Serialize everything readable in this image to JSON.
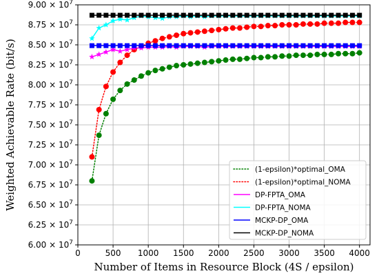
{
  "chart_data": {
    "type": "line",
    "xlabel": "Number of Items in Resource Block (4S / epsilon)",
    "ylabel": "Weighted Achievable Rate (bit/s)",
    "xlim": [
      0,
      4150
    ],
    "ylim": [
      6.0,
      9.0
    ],
    "y_scale_suffix": "x 10^7",
    "x_ticks": [
      0,
      500,
      1000,
      1500,
      2000,
      2500,
      3000,
      3500,
      4000
    ],
    "x_tick_labels": [
      "0",
      "500",
      "1000",
      "1500",
      "2000",
      "2500",
      "3000",
      "3500",
      "4000"
    ],
    "y_ticks": [
      6.0,
      6.25,
      6.5,
      6.75,
      7.0,
      7.25,
      7.5,
      7.75,
      8.0,
      8.25,
      8.5,
      8.75,
      9.0
    ],
    "y_tick_labels": [
      "6.00",
      "6.25",
      "6.50",
      "6.75",
      "7.00",
      "7.25",
      "7.50",
      "7.75",
      "8.00",
      "8.25",
      "8.50",
      "8.75",
      "9.00"
    ],
    "y_tick_multiplier_base": "× 10",
    "y_tick_multiplier_exp": "7",
    "grid": true,
    "legend_position": "lower-right",
    "series": [
      {
        "name": "(1-epsilon)*optimal_OMA",
        "color": "#008000",
        "line_style": "dotted",
        "marker": "circle",
        "x": [
          200,
          300,
          400,
          500,
          600,
          700,
          800,
          900,
          1000,
          1100,
          1200,
          1300,
          1400,
          1500,
          1600,
          1700,
          1800,
          1900,
          2000,
          2100,
          2200,
          2300,
          2400,
          2500,
          2600,
          2700,
          2800,
          2900,
          3000,
          3100,
          3200,
          3300,
          3400,
          3500,
          3600,
          3700,
          3800,
          3900,
          4000
        ],
        "values": [
          6.8,
          7.37,
          7.64,
          7.82,
          7.93,
          8.01,
          8.06,
          8.11,
          8.15,
          8.18,
          8.2,
          8.22,
          8.24,
          8.25,
          8.26,
          8.27,
          8.28,
          8.29,
          8.3,
          8.31,
          8.32,
          8.32,
          8.33,
          8.34,
          8.34,
          8.35,
          8.35,
          8.36,
          8.36,
          8.37,
          8.37,
          8.37,
          8.38,
          8.38,
          8.38,
          8.39,
          8.39,
          8.39,
          8.4
        ]
      },
      {
        "name": "(1-epsilon)*optimal_NOMA",
        "color": "#ff0000",
        "line_style": "dotted",
        "marker": "circle",
        "x": [
          200,
          300,
          400,
          500,
          600,
          700,
          800,
          900,
          1000,
          1100,
          1200,
          1300,
          1400,
          1500,
          1600,
          1700,
          1800,
          1900,
          2000,
          2100,
          2200,
          2300,
          2400,
          2500,
          2600,
          2700,
          2800,
          2900,
          3000,
          3100,
          3200,
          3300,
          3400,
          3500,
          3600,
          3700,
          3800,
          3900,
          4000
        ],
        "values": [
          7.1,
          7.69,
          7.98,
          8.16,
          8.28,
          8.37,
          8.44,
          8.48,
          8.52,
          8.55,
          8.58,
          8.6,
          8.62,
          8.64,
          8.65,
          8.66,
          8.67,
          8.68,
          8.69,
          8.7,
          8.71,
          8.71,
          8.72,
          8.73,
          8.73,
          8.74,
          8.74,
          8.75,
          8.75,
          8.75,
          8.76,
          8.76,
          8.76,
          8.77,
          8.77,
          8.77,
          8.78,
          8.78,
          8.78
        ]
      },
      {
        "name": "DP-FPTA_OMA",
        "color": "#ff00ff",
        "line_style": "solid",
        "marker": "star",
        "x": [
          200,
          300,
          400,
          500,
          600,
          700,
          800,
          900,
          1000,
          1100,
          1200,
          1300,
          1400,
          1500,
          1600,
          1700,
          1800,
          1900,
          2000,
          2100,
          2200,
          2300,
          2400,
          2500,
          2600,
          2700,
          2800,
          2900,
          3000,
          3100,
          3200,
          3300,
          3400,
          3500,
          3600,
          3700,
          3800,
          3900,
          4000
        ],
        "values": [
          8.35,
          8.38,
          8.41,
          8.44,
          8.42,
          8.44,
          8.46,
          8.46,
          8.47,
          8.47,
          8.47,
          8.48,
          8.47,
          8.48,
          8.48,
          8.48,
          8.47,
          8.48,
          8.48,
          8.48,
          8.48,
          8.48,
          8.48,
          8.48,
          8.48,
          8.48,
          8.48,
          8.48,
          8.48,
          8.48,
          8.48,
          8.48,
          8.48,
          8.48,
          8.48,
          8.48,
          8.48,
          8.48,
          8.48
        ]
      },
      {
        "name": "DP-FPTA_NOMA",
        "color": "#00ffff",
        "line_style": "solid",
        "marker": "star",
        "x": [
          200,
          300,
          400,
          500,
          600,
          700,
          800,
          900,
          1000,
          1100,
          1200,
          1300,
          1400,
          1500,
          1600,
          1700,
          1800,
          1900,
          2000,
          2100,
          2200,
          2300,
          2400,
          2500,
          2600,
          2700,
          2800,
          2900,
          3000,
          3100,
          3200,
          3300,
          3400,
          3500,
          3600,
          3700,
          3800,
          3900,
          4000
        ],
        "values": [
          8.58,
          8.71,
          8.75,
          8.8,
          8.82,
          8.81,
          8.84,
          8.86,
          8.85,
          8.84,
          8.83,
          8.85,
          8.85,
          8.86,
          8.85,
          8.86,
          8.85,
          8.86,
          8.86,
          8.86,
          8.86,
          8.86,
          8.86,
          8.86,
          8.86,
          8.86,
          8.86,
          8.86,
          8.86,
          8.86,
          8.86,
          8.86,
          8.86,
          8.86,
          8.86,
          8.86,
          8.86,
          8.86,
          8.86
        ]
      },
      {
        "name": "MCKP-DP_OMA",
        "color": "#0000ff",
        "line_style": "solid",
        "marker": "square",
        "x": [
          200,
          300,
          400,
          500,
          600,
          700,
          800,
          900,
          1000,
          1100,
          1200,
          1300,
          1400,
          1500,
          1600,
          1700,
          1800,
          1900,
          2000,
          2100,
          2200,
          2300,
          2400,
          2500,
          2600,
          2700,
          2800,
          2900,
          3000,
          3100,
          3200,
          3300,
          3400,
          3500,
          3600,
          3700,
          3800,
          3900,
          4000
        ],
        "values": [
          8.49,
          8.49,
          8.49,
          8.49,
          8.49,
          8.49,
          8.49,
          8.49,
          8.49,
          8.49,
          8.49,
          8.49,
          8.49,
          8.49,
          8.49,
          8.49,
          8.49,
          8.49,
          8.49,
          8.49,
          8.49,
          8.49,
          8.49,
          8.49,
          8.49,
          8.49,
          8.49,
          8.49,
          8.49,
          8.49,
          8.49,
          8.49,
          8.49,
          8.49,
          8.49,
          8.49,
          8.49,
          8.49,
          8.49
        ]
      },
      {
        "name": "MCKP-DP_NOMA",
        "color": "#000000",
        "line_style": "solid",
        "marker": "square",
        "x": [
          200,
          300,
          400,
          500,
          600,
          700,
          800,
          900,
          1000,
          1100,
          1200,
          1300,
          1400,
          1500,
          1600,
          1700,
          1800,
          1900,
          2000,
          2100,
          2200,
          2300,
          2400,
          2500,
          2600,
          2700,
          2800,
          2900,
          3000,
          3100,
          3200,
          3300,
          3400,
          3500,
          3600,
          3700,
          3800,
          3900,
          4000
        ],
        "values": [
          8.87,
          8.87,
          8.87,
          8.87,
          8.87,
          8.87,
          8.87,
          8.87,
          8.87,
          8.87,
          8.87,
          8.87,
          8.87,
          8.87,
          8.87,
          8.87,
          8.87,
          8.87,
          8.87,
          8.87,
          8.87,
          8.87,
          8.87,
          8.87,
          8.87,
          8.87,
          8.87,
          8.87,
          8.87,
          8.87,
          8.87,
          8.87,
          8.87,
          8.87,
          8.87,
          8.87,
          8.87,
          8.87,
          8.87
        ]
      }
    ]
  }
}
